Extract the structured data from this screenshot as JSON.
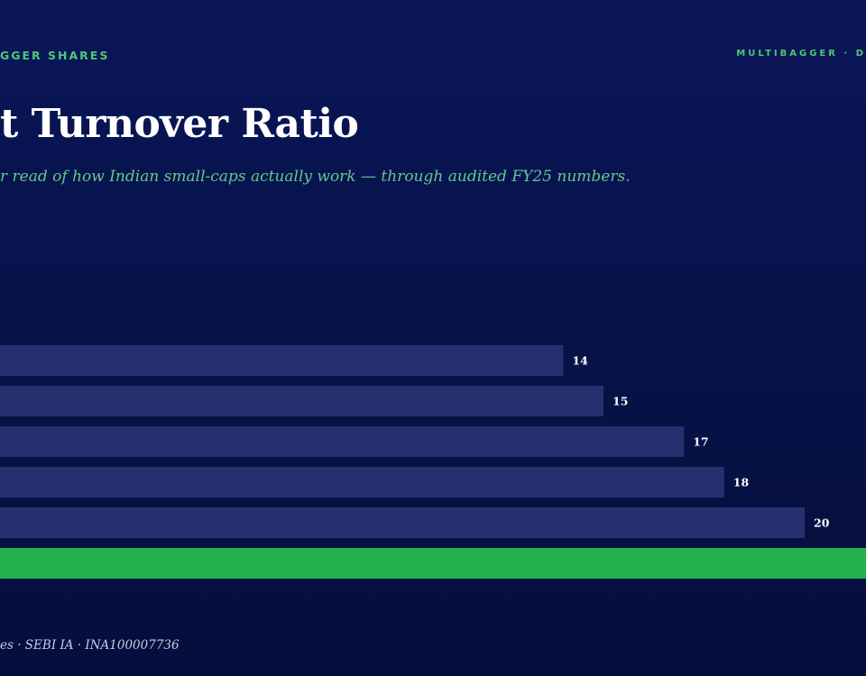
{
  "header": {
    "brand_left": "GGER SHARES",
    "brand_right": "MULTIBAGGER · D"
  },
  "title": "t Turnover Ratio",
  "subtitle": "r read of how Indian small-caps actually work — through audited FY25 numbers.",
  "footer": "es · SEBI IA · INA100007736",
  "colors": {
    "bar": "#27306e",
    "highlight": "#22b14f",
    "label": "#ffffff",
    "accent": "#4fc77a"
  },
  "chart_data": {
    "type": "bar",
    "orientation": "horizontal",
    "values": [
      14,
      15,
      17,
      18,
      20,
      null
    ],
    "highlight_index": 5,
    "title": "t Turnover Ratio"
  }
}
